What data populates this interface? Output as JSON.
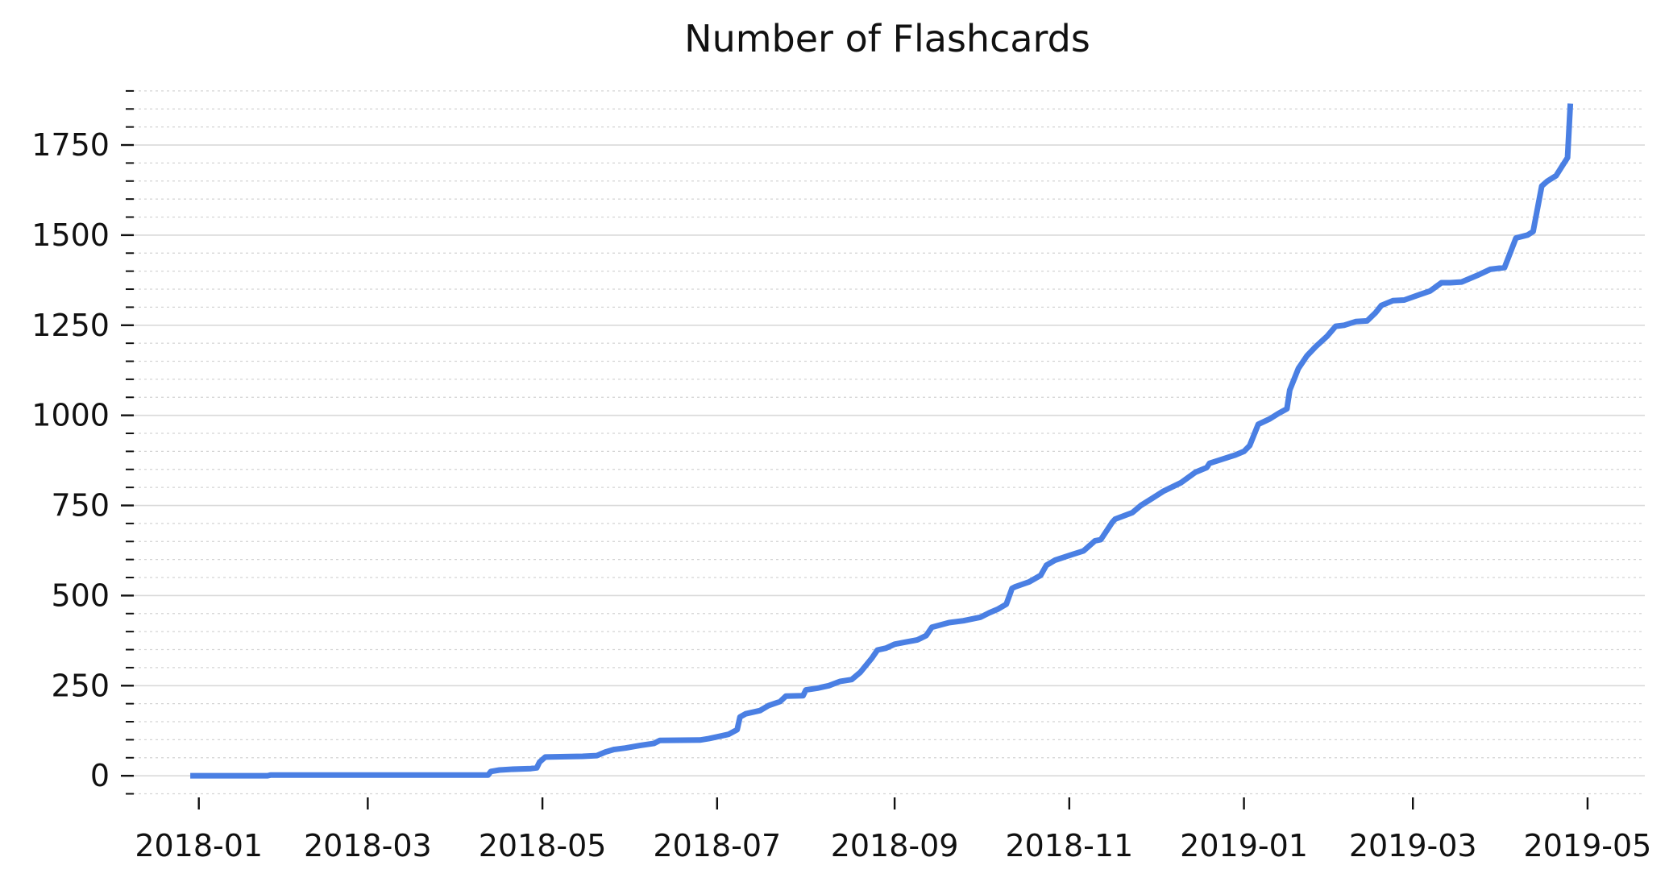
{
  "chart_data": {
    "type": "line",
    "title": "Number of Flashcards",
    "xlabel": "",
    "ylabel": "",
    "x_range": [
      "2017-12-09",
      "2019-05-21"
    ],
    "ylim": [
      -60,
      1940
    ],
    "y_ticks": [
      0,
      250,
      500,
      750,
      1000,
      1250,
      1500,
      1750
    ],
    "y_tick_labels": [
      "0",
      "250",
      "500",
      "750",
      "1000",
      "1250",
      "1500",
      "1750"
    ],
    "x_ticks": [
      "2018-01-01",
      "2018-03-01",
      "2018-05-01",
      "2018-07-01",
      "2018-09-01",
      "2018-11-01",
      "2019-01-01",
      "2019-03-01",
      "2019-05-01"
    ],
    "x_tick_labels": [
      "2018-01",
      "2018-03",
      "2018-05",
      "2018-07",
      "2018-09",
      "2018-11",
      "2019-01",
      "2019-03",
      "2019-05"
    ],
    "grid": {
      "major_y": true,
      "minor_y": true,
      "x": false
    },
    "legend": "none",
    "color": "#4a7fe3",
    "series": [
      {
        "x": [
          "2017-12-29",
          "2018-01-25",
          "2018-01-26",
          "2018-04-12",
          "2018-04-13",
          "2018-04-16",
          "2018-04-20",
          "2018-04-27",
          "2018-04-29",
          "2018-04-30",
          "2018-05-02",
          "2018-05-09",
          "2018-05-15",
          "2018-05-20",
          "2018-05-23",
          "2018-05-26",
          "2018-05-30",
          "2018-06-04",
          "2018-06-09",
          "2018-06-11",
          "2018-06-25",
          "2018-06-28",
          "2018-07-01",
          "2018-07-05",
          "2018-07-08",
          "2018-07-09",
          "2018-07-11",
          "2018-07-16",
          "2018-07-19",
          "2018-07-23",
          "2018-07-25",
          "2018-07-31",
          "2018-08-01",
          "2018-08-05",
          "2018-08-09",
          "2018-08-13",
          "2018-08-17",
          "2018-08-20",
          "2018-08-24",
          "2018-08-26",
          "2018-08-29",
          "2018-09-01",
          "2018-09-05",
          "2018-09-09",
          "2018-09-12",
          "2018-09-14",
          "2018-09-20",
          "2018-09-25",
          "2018-10-01",
          "2018-10-04",
          "2018-10-07",
          "2018-10-10",
          "2018-10-12",
          "2018-10-13",
          "2018-10-18",
          "2018-10-22",
          "2018-10-24",
          "2018-10-27",
          "2018-11-02",
          "2018-11-06",
          "2018-11-10",
          "2018-11-12",
          "2018-11-16",
          "2018-11-17",
          "2018-11-23",
          "2018-11-26",
          "2018-11-30",
          "2018-12-04",
          "2018-12-10",
          "2018-12-15",
          "2018-12-19",
          "2018-12-20",
          "2018-12-25",
          "2018-12-29",
          "2019-01-01",
          "2019-01-03",
          "2019-01-06",
          "2019-01-10",
          "2019-01-13",
          "2019-01-16",
          "2019-01-17",
          "2019-01-20",
          "2019-01-23",
          "2019-01-26",
          "2019-01-30",
          "2019-02-02",
          "2019-02-05",
          "2019-02-09",
          "2019-02-13",
          "2019-02-16",
          "2019-02-18",
          "2019-02-22",
          "2019-02-26",
          "2019-03-03",
          "2019-03-07",
          "2019-03-11",
          "2019-03-14",
          "2019-03-18",
          "2019-03-24",
          "2019-03-28",
          "2019-04-02",
          "2019-04-06",
          "2019-04-10",
          "2019-04-12",
          "2019-04-15",
          "2019-04-17",
          "2019-04-20",
          "2019-04-22",
          "2019-04-24",
          "2019-04-25"
        ],
        "values": [
          0,
          0,
          2,
          2,
          12,
          16,
          18,
          20,
          22,
          38,
          52,
          53,
          54,
          56,
          66,
          73,
          77,
          84,
          90,
          98,
          99,
          103,
          108,
          115,
          128,
          163,
          172,
          181,
          195,
          206,
          221,
          222,
          238,
          243,
          250,
          262,
          267,
          287,
          326,
          349,
          354,
          365,
          371,
          377,
          389,
          412,
          425,
          430,
          440,
          452,
          462,
          476,
          520,
          524,
          538,
          556,
          584,
          598,
          614,
          624,
          652,
          655,
          703,
          712,
          730,
          750,
          770,
          790,
          813,
          842,
          855,
          867,
          880,
          890,
          900,
          916,
          975,
          990,
          1005,
          1018,
          1070,
          1130,
          1165,
          1190,
          1219,
          1247,
          1250,
          1260,
          1262,
          1285,
          1305,
          1318,
          1320,
          1334,
          1345,
          1368,
          1368,
          1370,
          1390,
          1405,
          1410,
          1492,
          1500,
          1510,
          1636,
          1650,
          1665,
          1690,
          1715,
          1865
        ]
      }
    ]
  }
}
